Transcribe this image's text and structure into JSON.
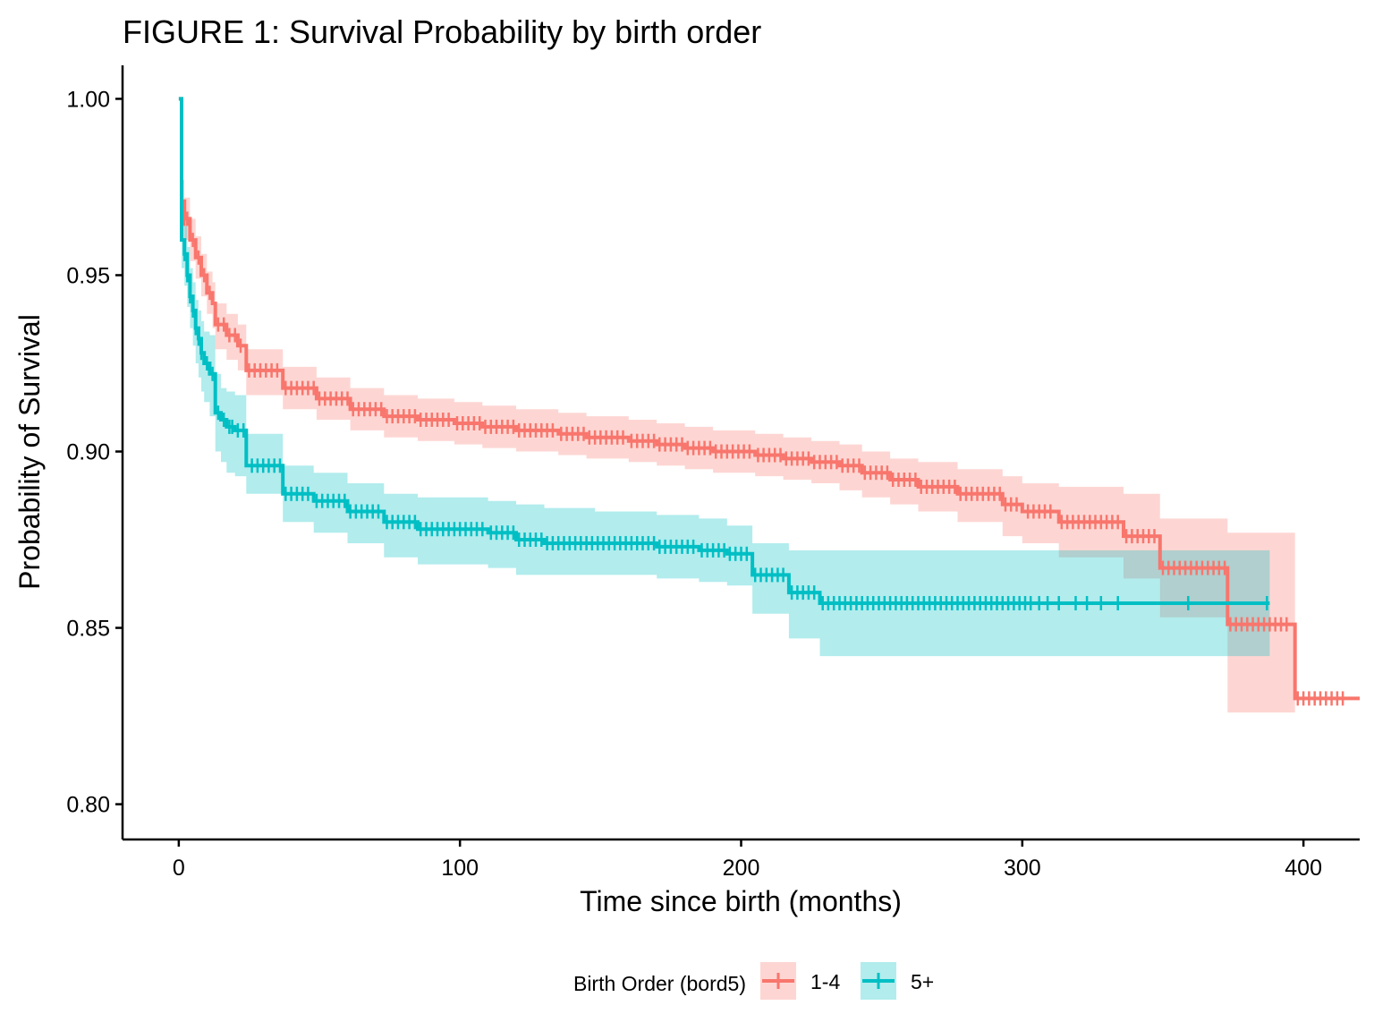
{
  "chart_data": {
    "type": "line",
    "subtype": "kaplan-meier-step",
    "title": "FIGURE 1: Survival Probability by birth order",
    "xlabel": "Time since birth (months)",
    "ylabel": "Probability of Survival",
    "xlim": [
      -20,
      420
    ],
    "ylim": [
      0.79,
      1.0095
    ],
    "x_ticks": [
      0,
      100,
      200,
      300,
      400
    ],
    "x_tick_labels": [
      "0",
      "100",
      "200",
      "300",
      "400"
    ],
    "y_ticks": [
      0.8,
      0.85,
      0.9,
      0.95,
      1.0
    ],
    "y_tick_labels": [
      "0.80",
      "0.85",
      "0.90",
      "0.95",
      "1.00"
    ],
    "grid": false,
    "legend": {
      "title": "Birth Order (bord5)",
      "position": "bottom",
      "entries": [
        "1-4",
        "5+"
      ]
    },
    "series": [
      {
        "name": "1-4",
        "color": "#F8766D",
        "steps": [
          [
            0,
            1.0
          ],
          [
            1,
            0.971
          ],
          [
            2,
            0.966
          ],
          [
            4,
            0.96
          ],
          [
            6,
            0.955
          ],
          [
            8,
            0.95
          ],
          [
            10,
            0.945
          ],
          [
            12,
            0.942
          ],
          [
            13,
            0.936
          ],
          [
            17,
            0.933
          ],
          [
            21,
            0.93
          ],
          [
            24,
            0.923
          ],
          [
            37,
            0.918
          ],
          [
            49,
            0.915
          ],
          [
            61,
            0.912
          ],
          [
            73,
            0.91
          ],
          [
            85,
            0.909
          ],
          [
            98,
            0.908
          ],
          [
            108,
            0.907
          ],
          [
            120,
            0.906
          ],
          [
            135,
            0.905
          ],
          [
            145,
            0.904
          ],
          [
            160,
            0.903
          ],
          [
            170,
            0.902
          ],
          [
            180,
            0.901
          ],
          [
            190,
            0.9
          ],
          [
            205,
            0.899
          ],
          [
            215,
            0.898
          ],
          [
            225,
            0.897
          ],
          [
            235,
            0.896
          ],
          [
            243,
            0.894
          ],
          [
            253,
            0.892
          ],
          [
            263,
            0.89
          ],
          [
            277,
            0.888
          ],
          [
            293,
            0.885
          ],
          [
            300,
            0.883
          ],
          [
            313,
            0.88
          ],
          [
            336,
            0.876
          ],
          [
            349,
            0.867
          ],
          [
            373,
            0.851
          ],
          [
            397,
            0.83
          ],
          [
            420,
            0.83
          ]
        ],
        "ci_lower": [
          [
            0,
            1.0
          ],
          [
            1,
            0.965
          ],
          [
            2,
            0.96
          ],
          [
            4,
            0.954
          ],
          [
            6,
            0.949
          ],
          [
            8,
            0.944
          ],
          [
            10,
            0.939
          ],
          [
            12,
            0.935
          ],
          [
            13,
            0.929
          ],
          [
            17,
            0.926
          ],
          [
            21,
            0.923
          ],
          [
            24,
            0.916
          ],
          [
            37,
            0.912
          ],
          [
            49,
            0.909
          ],
          [
            61,
            0.906
          ],
          [
            73,
            0.904
          ],
          [
            85,
            0.903
          ],
          [
            98,
            0.902
          ],
          [
            108,
            0.901
          ],
          [
            120,
            0.9
          ],
          [
            135,
            0.899
          ],
          [
            145,
            0.898
          ],
          [
            160,
            0.897
          ],
          [
            170,
            0.896
          ],
          [
            180,
            0.895
          ],
          [
            190,
            0.894
          ],
          [
            205,
            0.893
          ],
          [
            215,
            0.892
          ],
          [
            225,
            0.891
          ],
          [
            235,
            0.889
          ],
          [
            243,
            0.887
          ],
          [
            253,
            0.885
          ],
          [
            263,
            0.883
          ],
          [
            277,
            0.88
          ],
          [
            293,
            0.876
          ],
          [
            300,
            0.874
          ],
          [
            313,
            0.87
          ],
          [
            336,
            0.864
          ],
          [
            349,
            0.853
          ],
          [
            373,
            0.826
          ],
          [
            397,
            0.826
          ]
        ],
        "ci_upper": [
          [
            0,
            1.0
          ],
          [
            1,
            0.977
          ],
          [
            2,
            0.972
          ],
          [
            4,
            0.966
          ],
          [
            6,
            0.961
          ],
          [
            8,
            0.956
          ],
          [
            10,
            0.951
          ],
          [
            12,
            0.948
          ],
          [
            13,
            0.942
          ],
          [
            17,
            0.939
          ],
          [
            21,
            0.936
          ],
          [
            24,
            0.929
          ],
          [
            37,
            0.924
          ],
          [
            49,
            0.921
          ],
          [
            61,
            0.918
          ],
          [
            73,
            0.916
          ],
          [
            85,
            0.915
          ],
          [
            98,
            0.914
          ],
          [
            108,
            0.913
          ],
          [
            120,
            0.912
          ],
          [
            135,
            0.911
          ],
          [
            145,
            0.91
          ],
          [
            160,
            0.909
          ],
          [
            170,
            0.908
          ],
          [
            180,
            0.907
          ],
          [
            190,
            0.906
          ],
          [
            205,
            0.905
          ],
          [
            215,
            0.904
          ],
          [
            225,
            0.903
          ],
          [
            235,
            0.902
          ],
          [
            243,
            0.9
          ],
          [
            253,
            0.898
          ],
          [
            263,
            0.897
          ],
          [
            277,
            0.895
          ],
          [
            293,
            0.893
          ],
          [
            300,
            0.891
          ],
          [
            313,
            0.89
          ],
          [
            336,
            0.888
          ],
          [
            349,
            0.881
          ],
          [
            373,
            0.877
          ],
          [
            397,
            0.877
          ]
        ],
        "censor_times": [
          2,
          3,
          5,
          7,
          9,
          11,
          14,
          16,
          18,
          20,
          22,
          25,
          27,
          29,
          31,
          33,
          35,
          38,
          40,
          42,
          44,
          46,
          48,
          50,
          52,
          54,
          56,
          58,
          60,
          62,
          64,
          66,
          68,
          70,
          72,
          74,
          76,
          78,
          80,
          82,
          84,
          86,
          88,
          90,
          92,
          94,
          96,
          99,
          101,
          103,
          105,
          107,
          109,
          111,
          113,
          115,
          117,
          119,
          121,
          123,
          125,
          127,
          129,
          131,
          133,
          136,
          138,
          140,
          142,
          144,
          146,
          148,
          150,
          152,
          154,
          156,
          158,
          161,
          163,
          165,
          167,
          169,
          171,
          173,
          175,
          177,
          179,
          181,
          183,
          185,
          187,
          189,
          191,
          193,
          195,
          197,
          199,
          201,
          203,
          206,
          208,
          210,
          212,
          214,
          216,
          218,
          220,
          222,
          224,
          226,
          228,
          230,
          232,
          234,
          236,
          238,
          240,
          242,
          244,
          246,
          248,
          250,
          252,
          254,
          256,
          258,
          260,
          262,
          264,
          266,
          268,
          270,
          272,
          274,
          276,
          278,
          280,
          282,
          284,
          286,
          288,
          290,
          292,
          294,
          296,
          298,
          302,
          304,
          306,
          308,
          310,
          314,
          316,
          318,
          320,
          322,
          324,
          326,
          328,
          330,
          332,
          334,
          337,
          339,
          341,
          343,
          345,
          347,
          350,
          352,
          354,
          356,
          358,
          360,
          362,
          364,
          366,
          368,
          370,
          372,
          374,
          376,
          378,
          380,
          382,
          384,
          386,
          388,
          390,
          392,
          394,
          398,
          400,
          402,
          404,
          406,
          408,
          410,
          412,
          414
        ]
      },
      {
        "name": "5+",
        "color": "#00BFC4",
        "steps": [
          [
            0,
            1.0
          ],
          [
            1,
            0.96
          ],
          [
            2,
            0.956
          ],
          [
            3,
            0.95
          ],
          [
            4,
            0.944
          ],
          [
            5,
            0.94
          ],
          [
            6,
            0.935
          ],
          [
            7,
            0.932
          ],
          [
            8,
            0.928
          ],
          [
            9,
            0.925
          ],
          [
            11,
            0.922
          ],
          [
            13,
            0.911
          ],
          [
            15,
            0.909
          ],
          [
            17,
            0.907
          ],
          [
            20,
            0.906
          ],
          [
            24,
            0.896
          ],
          [
            37,
            0.888
          ],
          [
            48,
            0.886
          ],
          [
            60,
            0.883
          ],
          [
            73,
            0.88
          ],
          [
            85,
            0.878
          ],
          [
            110,
            0.877
          ],
          [
            120,
            0.875
          ],
          [
            130,
            0.874
          ],
          [
            148,
            0.874
          ],
          [
            170,
            0.873
          ],
          [
            185,
            0.872
          ],
          [
            195,
            0.871
          ],
          [
            204,
            0.865
          ],
          [
            217,
            0.86
          ],
          [
            228,
            0.857
          ],
          [
            388,
            0.857
          ]
        ],
        "ci_lower": [
          [
            0,
            1.0
          ],
          [
            1,
            0.952
          ],
          [
            2,
            0.947
          ],
          [
            3,
            0.941
          ],
          [
            4,
            0.935
          ],
          [
            5,
            0.93
          ],
          [
            6,
            0.925
          ],
          [
            7,
            0.921
          ],
          [
            8,
            0.917
          ],
          [
            9,
            0.914
          ],
          [
            11,
            0.91
          ],
          [
            13,
            0.9
          ],
          [
            15,
            0.897
          ],
          [
            17,
            0.894
          ],
          [
            20,
            0.893
          ],
          [
            24,
            0.888
          ],
          [
            37,
            0.88
          ],
          [
            48,
            0.877
          ],
          [
            60,
            0.874
          ],
          [
            73,
            0.87
          ],
          [
            85,
            0.868
          ],
          [
            110,
            0.867
          ],
          [
            120,
            0.865
          ],
          [
            130,
            0.865
          ],
          [
            148,
            0.865
          ],
          [
            170,
            0.864
          ],
          [
            185,
            0.863
          ],
          [
            195,
            0.862
          ],
          [
            204,
            0.854
          ],
          [
            217,
            0.847
          ],
          [
            228,
            0.842
          ],
          [
            388,
            0.842
          ]
        ],
        "ci_upper": [
          [
            0,
            1.0
          ],
          [
            1,
            0.968
          ],
          [
            2,
            0.964
          ],
          [
            3,
            0.958
          ],
          [
            4,
            0.952
          ],
          [
            5,
            0.948
          ],
          [
            6,
            0.943
          ],
          [
            7,
            0.94
          ],
          [
            8,
            0.937
          ],
          [
            9,
            0.934
          ],
          [
            11,
            0.933
          ],
          [
            13,
            0.922
          ],
          [
            15,
            0.918
          ],
          [
            17,
            0.917
          ],
          [
            20,
            0.916
          ],
          [
            24,
            0.905
          ],
          [
            37,
            0.896
          ],
          [
            48,
            0.894
          ],
          [
            60,
            0.891
          ],
          [
            73,
            0.888
          ],
          [
            85,
            0.887
          ],
          [
            110,
            0.886
          ],
          [
            120,
            0.885
          ],
          [
            130,
            0.884
          ],
          [
            148,
            0.883
          ],
          [
            170,
            0.882
          ],
          [
            185,
            0.881
          ],
          [
            195,
            0.879
          ],
          [
            204,
            0.874
          ],
          [
            217,
            0.872
          ],
          [
            228,
            0.872
          ],
          [
            388,
            0.872
          ]
        ],
        "censor_times": [
          2,
          3,
          4,
          5,
          6,
          7,
          8,
          10,
          12,
          14,
          16,
          18,
          19,
          21,
          23,
          26,
          28,
          30,
          32,
          34,
          36,
          38,
          40,
          42,
          44,
          46,
          49,
          51,
          53,
          55,
          57,
          59,
          61,
          63,
          65,
          67,
          69,
          71,
          74,
          76,
          78,
          80,
          82,
          84,
          86,
          88,
          90,
          92,
          94,
          96,
          98,
          100,
          102,
          104,
          106,
          108,
          111,
          113,
          115,
          117,
          119,
          121,
          123,
          125,
          127,
          129,
          131,
          133,
          135,
          137,
          139,
          141,
          143,
          145,
          147,
          149,
          151,
          153,
          155,
          157,
          159,
          161,
          163,
          165,
          167,
          169,
          171,
          173,
          175,
          177,
          179,
          181,
          183,
          186,
          188,
          190,
          192,
          194,
          196,
          198,
          200,
          202,
          205,
          207,
          209,
          211,
          213,
          215,
          218,
          220,
          222,
          224,
          226,
          229,
          231,
          233,
          235,
          237,
          239,
          241,
          243,
          245,
          247,
          249,
          251,
          253,
          255,
          257,
          259,
          261,
          263,
          265,
          267,
          269,
          271,
          273,
          275,
          277,
          279,
          281,
          283,
          285,
          287,
          289,
          291,
          293,
          295,
          297,
          299,
          301,
          303,
          306,
          309,
          313,
          319,
          323,
          328,
          334,
          359,
          387
        ]
      }
    ]
  }
}
